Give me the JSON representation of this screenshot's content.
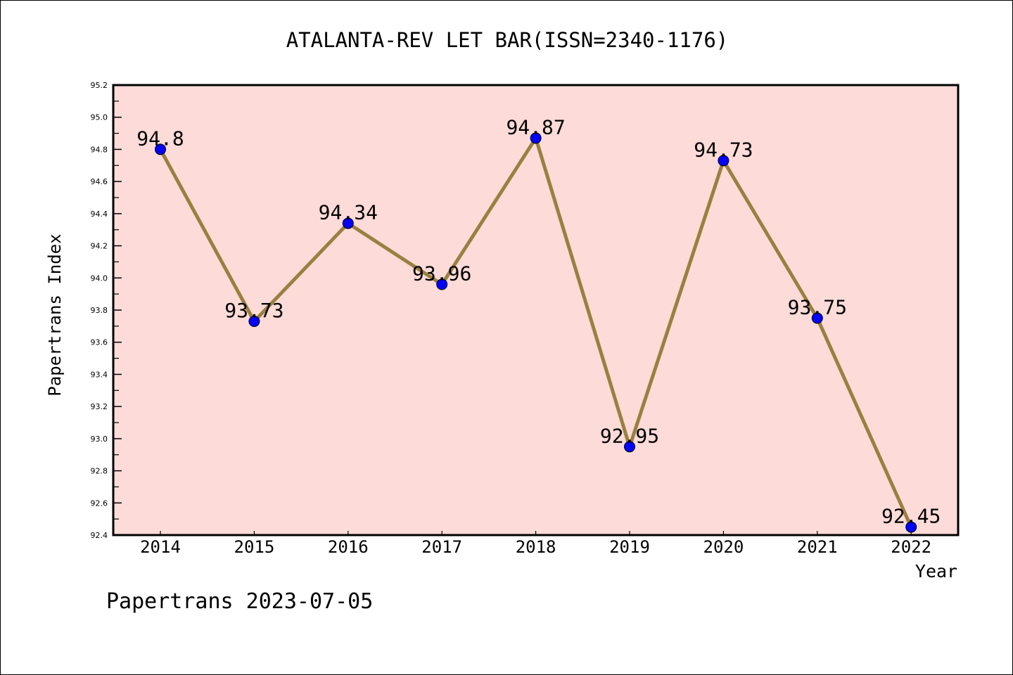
{
  "chart_data": {
    "type": "line",
    "title": "ATALANTA-REV LET BAR(ISSN=2340-1176)",
    "xlabel": "Year",
    "ylabel": "Papertrans Index",
    "categories": [
      "2014",
      "2015",
      "2016",
      "2017",
      "2018",
      "2019",
      "2020",
      "2021",
      "2022"
    ],
    "values": [
      94.8,
      93.73,
      94.34,
      93.96,
      94.87,
      92.95,
      94.73,
      93.75,
      92.45
    ],
    "data_labels": [
      "94.8",
      "93.73",
      "94.34",
      "93.96",
      "94.87",
      "92.95",
      "94.73",
      "93.75",
      "92.45"
    ],
    "ylim": [
      92.4,
      95.2
    ],
    "yticks": [
      "92.4",
      "92.6",
      "92.8",
      "93.0",
      "93.2",
      "93.4",
      "93.6",
      "93.8",
      "94.0",
      "94.2",
      "94.4",
      "94.6",
      "94.8",
      "95.0",
      "95.2"
    ],
    "grid": false,
    "colors": {
      "line": "#9a8040",
      "marker": "#0000ff",
      "plot_bg": "#fddbd8"
    }
  },
  "footer": "Papertrans 2023-07-05"
}
